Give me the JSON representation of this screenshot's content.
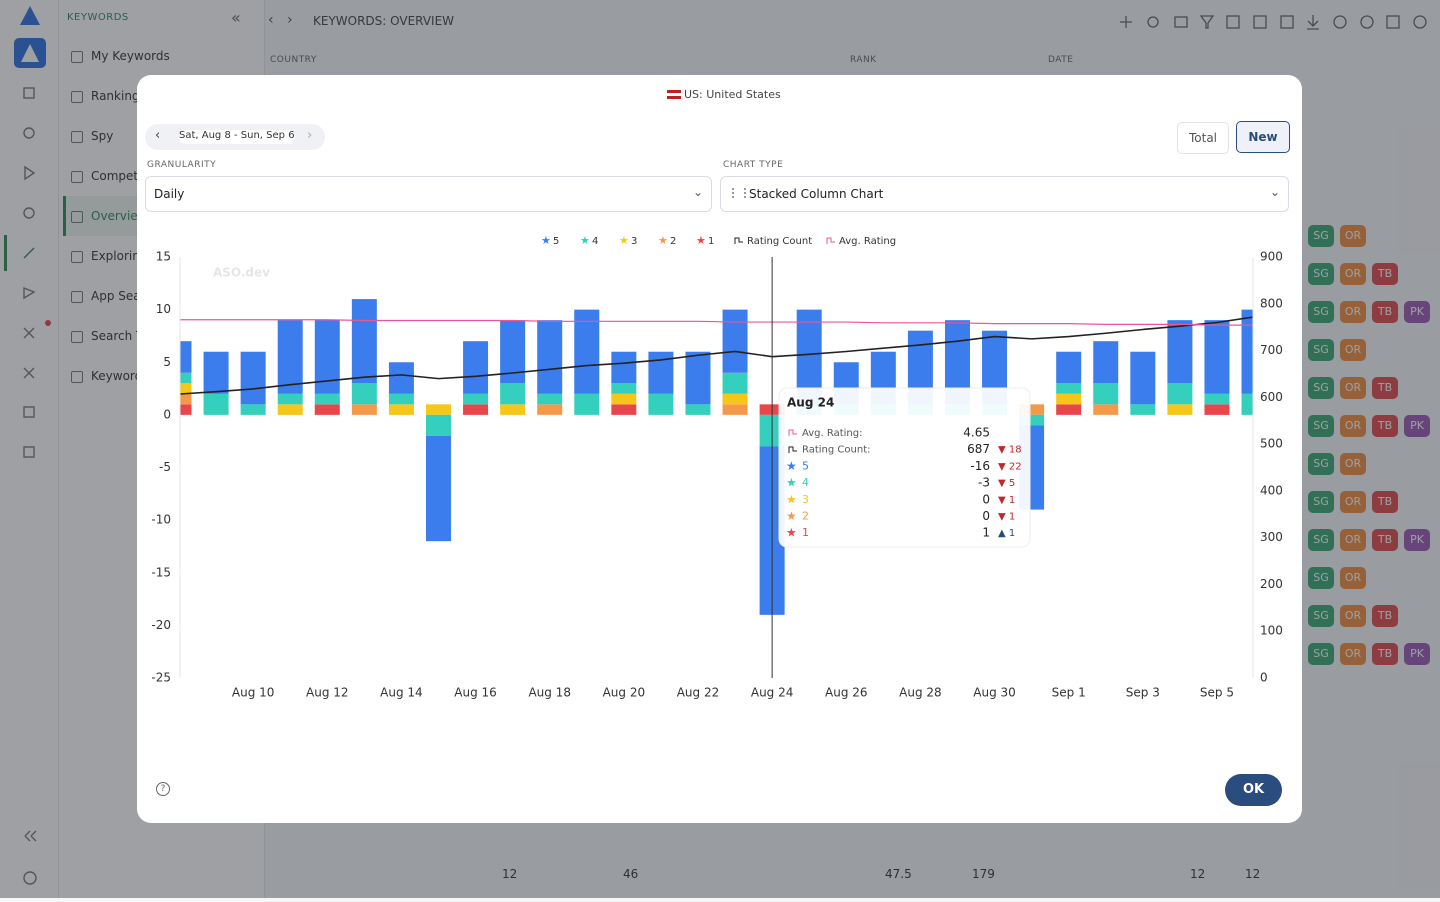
{
  "app": {
    "section": "KEYWORDS",
    "breadcrumb": "KEYWORDS: OVERVIEW",
    "nav": [
      "My Keywords",
      "Rankings",
      "Spy",
      "Competi",
      "Overvie",
      "Exploring",
      "App Sea",
      "Search T",
      "Keyword"
    ],
    "columns": [
      "COUNTRY",
      "RANK",
      "DATE"
    ],
    "footer_numbers": [
      "12",
      "46",
      "47.5",
      "179",
      "12",
      "12"
    ],
    "tags": [
      [
        "SG",
        "OR"
      ],
      [
        "SG",
        "OR",
        "TB"
      ],
      [
        "SG",
        "OR",
        "TB",
        "PK"
      ],
      [
        "SG",
        "OR"
      ],
      [
        "SG",
        "OR",
        "TB"
      ],
      [
        "SG",
        "OR",
        "TB",
        "PK"
      ],
      [
        "SG",
        "OR"
      ],
      [
        "SG",
        "OR",
        "TB"
      ],
      [
        "SG",
        "OR",
        "TB",
        "PK"
      ],
      [
        "SG",
        "OR"
      ],
      [
        "SG",
        "OR",
        "TB"
      ],
      [
        "SG",
        "OR",
        "TB",
        "PK"
      ]
    ]
  },
  "modal": {
    "country": "US: United States",
    "date_range": "Sat, Aug 8 - Sun, Sep 6",
    "toggle": [
      "Total",
      "New"
    ],
    "granularity_label": "GRANULARITY",
    "granularity": "Daily",
    "chart_type_label": "CHART TYPE",
    "chart_type": "Stacked Column Chart",
    "ok": "OK"
  },
  "chart_data": {
    "type": "stacked-bar",
    "watermark": "ASO.dev",
    "categories": [
      null,
      null,
      "Aug 10",
      null,
      "Aug 12",
      null,
      "Aug 14",
      null,
      "Aug 16",
      null,
      "Aug 18",
      null,
      "Aug 20",
      null,
      "Aug 22",
      null,
      "Aug 24",
      null,
      "Aug 26",
      null,
      "Aug 28",
      null,
      "Aug 30",
      null,
      "Sep 1",
      null,
      "Sep 3",
      null,
      "Sep 5",
      null
    ],
    "ylim": [
      -25,
      15
    ],
    "yticks": [
      -25,
      -20,
      -15,
      -10,
      -5,
      0,
      5,
      10,
      15
    ],
    "y2lim": [
      0,
      900
    ],
    "y2ticks": [
      0,
      100,
      200,
      300,
      400,
      500,
      600,
      700,
      800,
      900
    ],
    "y3lim": [
      0,
      5.5
    ],
    "series": [
      {
        "name": "5",
        "color": "#3b7ded",
        "values": [
          3,
          4,
          5,
          7,
          7,
          8,
          3,
          -10,
          5,
          6,
          7,
          8,
          3,
          4,
          5,
          6,
          -16,
          9,
          4,
          5,
          7,
          8,
          7,
          -8,
          3,
          4,
          5,
          6,
          7,
          8
        ]
      },
      {
        "name": "4",
        "color": "#35d0bd",
        "values": [
          1,
          2,
          1,
          1,
          1,
          2,
          1,
          -2,
          1,
          2,
          1,
          2,
          1,
          2,
          1,
          2,
          -3,
          1,
          1,
          1,
          1,
          1,
          1,
          -1,
          1,
          2,
          1,
          2,
          1,
          2
        ]
      },
      {
        "name": "3",
        "color": "#f6c619",
        "values": [
          1,
          0,
          0,
          1,
          0,
          0,
          1,
          1,
          0,
          1,
          0,
          0,
          1,
          0,
          0,
          1,
          0,
          0,
          0,
          0,
          0,
          0,
          0,
          0,
          1,
          0,
          0,
          1,
          0,
          0
        ]
      },
      {
        "name": "2",
        "color": "#f4994a",
        "values": [
          1,
          0,
          0,
          0,
          0,
          1,
          0,
          0,
          0,
          0,
          1,
          0,
          0,
          0,
          0,
          1,
          0,
          0,
          0,
          0,
          0,
          0,
          0,
          1,
          0,
          1,
          0,
          0,
          0,
          0
        ]
      },
      {
        "name": "1",
        "color": "#e8464a",
        "values": [
          1,
          0,
          0,
          0,
          1,
          0,
          0,
          0,
          1,
          0,
          0,
          0,
          1,
          0,
          0,
          0,
          1,
          0,
          0,
          0,
          0,
          0,
          0,
          0,
          1,
          0,
          0,
          0,
          1,
          0
        ]
      },
      {
        "name": "Rating Count",
        "type": "line",
        "axis": "y2",
        "color": "#222222",
        "values": [
          607,
          612,
          618,
          627,
          635,
          643,
          648,
          640,
          645,
          652,
          660,
          668,
          673,
          680,
          690,
          698,
          687,
          692,
          698,
          705,
          712,
          720,
          730,
          725,
          730,
          737,
          745,
          752,
          760,
          772
        ]
      },
      {
        "name": "Avg. Rating",
        "type": "line",
        "axis": "y3",
        "color": "#e8579a",
        "values": [
          4.68,
          4.68,
          4.68,
          4.68,
          4.68,
          4.67,
          4.67,
          4.67,
          4.67,
          4.67,
          4.66,
          4.66,
          4.66,
          4.66,
          4.66,
          4.65,
          4.65,
          4.65,
          4.65,
          4.64,
          4.64,
          4.64,
          4.63,
          4.63,
          4.63,
          4.62,
          4.62,
          4.62,
          4.61,
          4.61
        ]
      }
    ],
    "tooltip": {
      "avg_label": "Avg. Rating:",
      "count_label": "Rating Count:",
      "changes": [
        "▼ 18",
        "▼ 22",
        "▼ 5",
        "▼ 1",
        "▼ 1",
        "▲ 1"
      ]
    }
  }
}
